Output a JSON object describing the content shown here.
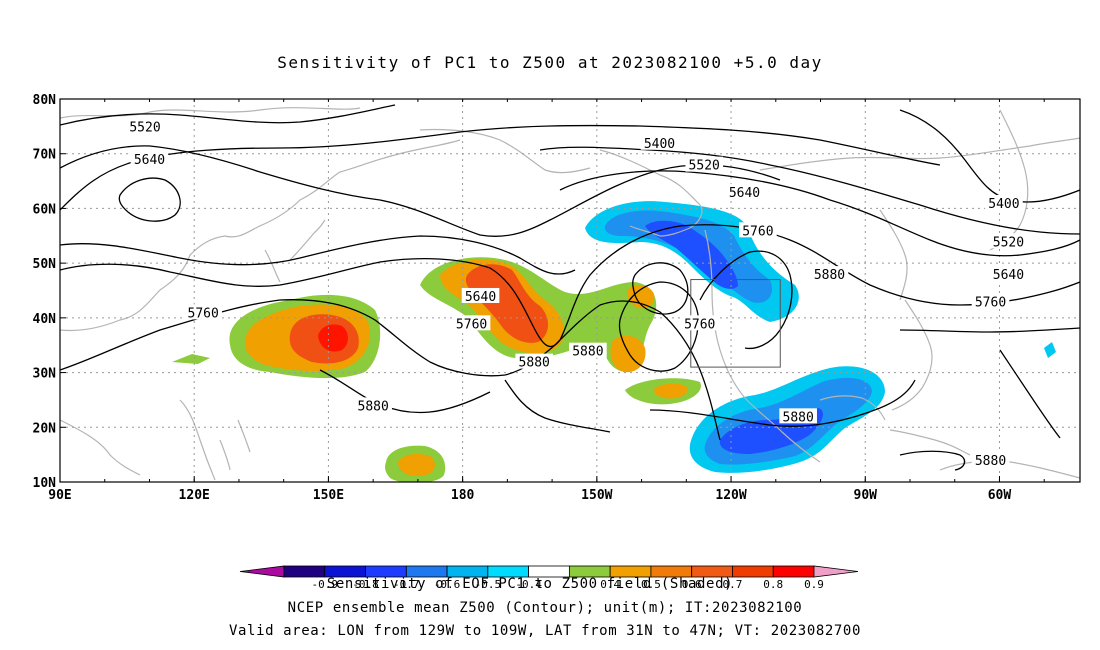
{
  "title": "Sensitivity of PC1 to Z500 at 2023082100 +5.0 day",
  "map": {
    "lat_labels": [
      "10N",
      "20N",
      "30N",
      "40N",
      "50N",
      "60N",
      "70N",
      "80N"
    ],
    "lat_values": [
      10,
      20,
      30,
      40,
      50,
      60,
      70,
      80
    ],
    "lon_labels": [
      "90E",
      "120E",
      "150E",
      "180",
      "150W",
      "120W",
      "90W",
      "60W"
    ],
    "lon_values": [
      90,
      120,
      150,
      180,
      210,
      240,
      270,
      300
    ],
    "lon_range": [
      90,
      318
    ],
    "lat_range": [
      10,
      80
    ],
    "grid": "dotted",
    "coastline_color": "#b4b4b4",
    "valid_box": {
      "lon": [
        231,
        251
      ],
      "lat": [
        31,
        47
      ]
    }
  },
  "contour_labels": [
    {
      "text": "5520",
      "lon": 109,
      "lat": 75
    },
    {
      "text": "5640",
      "lon": 110,
      "lat": 69
    },
    {
      "text": "5400",
      "lon": 224,
      "lat": 72
    },
    {
      "text": "5520",
      "lon": 234,
      "lat": 68
    },
    {
      "text": "5640",
      "lon": 243,
      "lat": 63
    },
    {
      "text": "5760",
      "lon": 246,
      "lat": 56
    },
    {
      "text": "5880",
      "lon": 262,
      "lat": 48
    },
    {
      "text": "5640",
      "lon": 184,
      "lat": 44
    },
    {
      "text": "5760",
      "lon": 182,
      "lat": 39
    },
    {
      "text": "5760",
      "lon": 233,
      "lat": 39
    },
    {
      "text": "5760",
      "lon": 122,
      "lat": 41
    },
    {
      "text": "5880",
      "lon": 196,
      "lat": 32
    },
    {
      "text": "5880",
      "lon": 208,
      "lat": 34
    },
    {
      "text": "5880",
      "lon": 160,
      "lat": 24
    },
    {
      "text": "5880",
      "lon": 255,
      "lat": 22
    },
    {
      "text": "5400",
      "lon": 301,
      "lat": 61
    },
    {
      "text": "5520",
      "lon": 302,
      "lat": 54
    },
    {
      "text": "5640",
      "lon": 302,
      "lat": 48
    },
    {
      "text": "5760",
      "lon": 298,
      "lat": 43
    },
    {
      "text": "5880",
      "lon": 298,
      "lat": 14
    }
  ],
  "colorbar": {
    "colors": [
      "#aa0aa0",
      "#1e0080",
      "#0a14d2",
      "#1e3cff",
      "#1e78f0",
      "#00b4f0",
      "#00dcff",
      "#ffffff",
      "#8ccc3c",
      "#f0a000",
      "#f07a0a",
      "#f05a14",
      "#f03c00",
      "#ff0000",
      "#f0a0c8"
    ],
    "tick_labels": [
      "-0.9",
      "-0.8",
      "-0.7",
      "-0.6",
      "-0.5",
      "-0.4",
      "0.4",
      "0.5",
      "0.6",
      "0.7",
      "0.8",
      "0.9"
    ],
    "caption": "Sensitivity of EOF PC1 to Z500 field (Shaded)"
  },
  "footer": {
    "line1": "NCEP ensemble mean Z500 (Contour); unit(m); IT:2023082100",
    "line2": "Valid area: LON from 129W to 109W, LAT from 31N to 47N; VT: 2023082700"
  },
  "shading_colors": {
    "green": "#8ccc3c",
    "orange": "#f0a000",
    "orange_red": "#f07a0a",
    "red": "#f04014",
    "cyan": "#00c8f0",
    "light_blue": "#1e90f0",
    "blue": "#1e50ff"
  }
}
